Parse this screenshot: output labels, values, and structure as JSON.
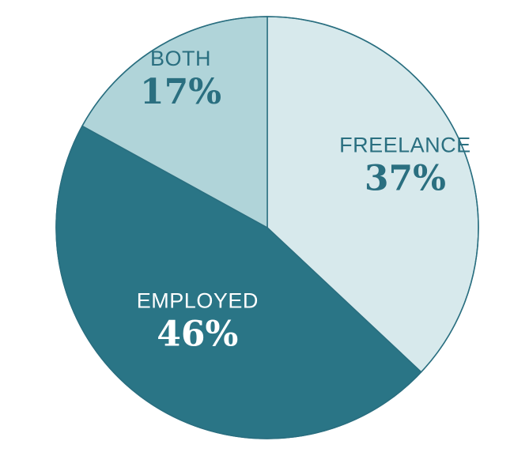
{
  "chart_data": {
    "type": "pie",
    "start_angle_deg": 0,
    "direction": "clockwise",
    "slices": [
      {
        "label": "FREELANCE",
        "value": 37,
        "value_label": "37%",
        "color": "#d7e9ec",
        "text_color": "#2a6f80"
      },
      {
        "label": "EMPLOYED",
        "value": 46,
        "value_label": "46%",
        "color": "#2a7586",
        "text_color": "#ffffff"
      },
      {
        "label": "BOTH",
        "value": 17,
        "value_label": "17%",
        "color": "#b0d4d9",
        "text_color": "#2a6f80"
      }
    ]
  }
}
